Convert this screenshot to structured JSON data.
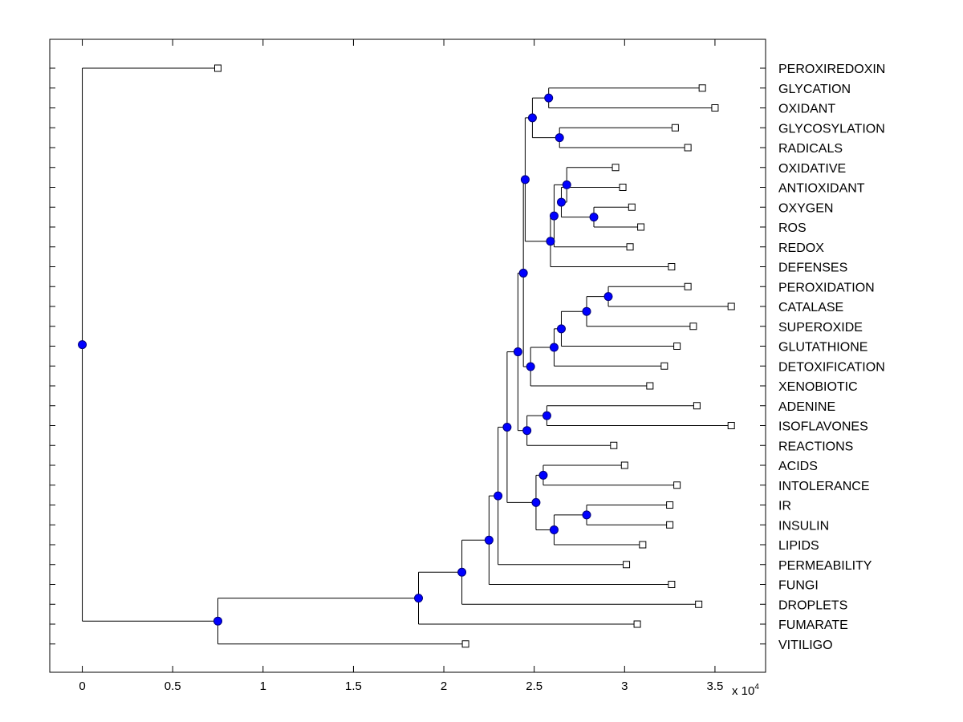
{
  "chart_data": {
    "type": "dendrogram",
    "title": "",
    "xlabel": "",
    "ylabel": "",
    "x_multiplier_label": "x 10",
    "x_multiplier_exponent": "4",
    "xlim": [
      -0.18,
      3.78
    ],
    "xticks": [
      0,
      0.5,
      1,
      1.5,
      2,
      2.5,
      3,
      3.5
    ],
    "grid": false,
    "leaves": [
      {
        "label": "PEROXIREDOXIN",
        "x": 0.75
      },
      {
        "label": "GLYCATION",
        "x": 3.43
      },
      {
        "label": "OXIDANT",
        "x": 3.5
      },
      {
        "label": "GLYCOSYLATION",
        "x": 3.28
      },
      {
        "label": "RADICALS",
        "x": 3.35
      },
      {
        "label": "OXIDATIVE",
        "x": 2.95
      },
      {
        "label": "ANTIOXIDANT",
        "x": 2.99
      },
      {
        "label": "OXYGEN",
        "x": 3.04
      },
      {
        "label": "ROS",
        "x": 3.09
      },
      {
        "label": "REDOX",
        "x": 3.03
      },
      {
        "label": "DEFENSES",
        "x": 3.26
      },
      {
        "label": "PEROXIDATION",
        "x": 3.35
      },
      {
        "label": "CATALASE",
        "x": 3.59
      },
      {
        "label": "SUPEROXIDE",
        "x": 3.38
      },
      {
        "label": "GLUTATHIONE",
        "x": 3.29
      },
      {
        "label": "DETOXIFICATION",
        "x": 3.22
      },
      {
        "label": "XENOBIOTIC",
        "x": 3.14
      },
      {
        "label": "ADENINE",
        "x": 3.4
      },
      {
        "label": "ISOFLAVONES",
        "x": 3.59
      },
      {
        "label": "REACTIONS",
        "x": 2.94
      },
      {
        "label": "ACIDS",
        "x": 3.0
      },
      {
        "label": "INTOLERANCE",
        "x": 3.29
      },
      {
        "label": "IR",
        "x": 3.25
      },
      {
        "label": "INSULIN",
        "x": 3.25
      },
      {
        "label": "LIPIDS",
        "x": 3.1
      },
      {
        "label": "PERMEABILITY",
        "x": 3.01
      },
      {
        "label": "FUNGI",
        "x": 3.26
      },
      {
        "label": "DROPLETS",
        "x": 3.41
      },
      {
        "label": "FUMARATE",
        "x": 3.07
      },
      {
        "label": "VITILIGO",
        "x": 2.12
      }
    ],
    "merges": [
      {
        "id": "n1",
        "x": 2.58,
        "children": [
          "L1",
          "L2"
        ]
      },
      {
        "id": "n2",
        "x": 2.64,
        "children": [
          "L3",
          "L4"
        ]
      },
      {
        "id": "n3",
        "x": 2.49,
        "children": [
          "n1",
          "n2"
        ]
      },
      {
        "id": "n4",
        "x": 2.83,
        "children": [
          "L7",
          "L8"
        ]
      },
      {
        "id": "n5",
        "x": 2.65,
        "children": [
          "L6",
          "n4"
        ]
      },
      {
        "id": "n6",
        "x": 2.68,
        "children": [
          "L5",
          "n5"
        ]
      },
      {
        "id": "n7",
        "x": 2.61,
        "children": [
          "n6",
          "L9"
        ]
      },
      {
        "id": "n8",
        "x": 2.59,
        "children": [
          "n7",
          "L10"
        ]
      },
      {
        "id": "n9",
        "x": 2.45,
        "children": [
          "n3",
          "n8"
        ]
      },
      {
        "id": "n10",
        "x": 2.91,
        "children": [
          "L11",
          "L12"
        ]
      },
      {
        "id": "n11",
        "x": 2.79,
        "children": [
          "n10",
          "L13"
        ]
      },
      {
        "id": "n12",
        "x": 2.65,
        "children": [
          "n11",
          "L14"
        ]
      },
      {
        "id": "n13",
        "x": 2.61,
        "children": [
          "n12",
          "L15"
        ]
      },
      {
        "id": "n14",
        "x": 2.48,
        "children": [
          "n13",
          "L16"
        ]
      },
      {
        "id": "n15",
        "x": 2.44,
        "children": [
          "n9",
          "n14"
        ]
      },
      {
        "id": "n16",
        "x": 2.57,
        "children": [
          "L17",
          "L18"
        ]
      },
      {
        "id": "n17",
        "x": 2.46,
        "children": [
          "n16",
          "L19"
        ]
      },
      {
        "id": "n18",
        "x": 2.41,
        "children": [
          "n15",
          "n17"
        ]
      },
      {
        "id": "n19",
        "x": 2.55,
        "children": [
          "L20",
          "L21"
        ]
      },
      {
        "id": "n20",
        "x": 2.79,
        "children": [
          "L22",
          "L23"
        ]
      },
      {
        "id": "n21",
        "x": 2.61,
        "children": [
          "n20",
          "L24"
        ]
      },
      {
        "id": "n22",
        "x": 2.51,
        "children": [
          "n19",
          "n21"
        ]
      },
      {
        "id": "n23",
        "x": 2.35,
        "children": [
          "n18",
          "n22"
        ]
      },
      {
        "id": "n24",
        "x": 2.3,
        "children": [
          "n23",
          "L25"
        ]
      },
      {
        "id": "n25",
        "x": 2.25,
        "children": [
          "n24",
          "L26"
        ]
      },
      {
        "id": "n26",
        "x": 2.1,
        "children": [
          "n25",
          "L27"
        ]
      },
      {
        "id": "n27",
        "x": 1.86,
        "children": [
          "n26",
          "L28"
        ]
      },
      {
        "id": "n28",
        "x": 0.75,
        "children": [
          "n27",
          "L29"
        ]
      },
      {
        "id": "n29",
        "x": 0.0,
        "children": [
          "L0",
          "n28"
        ]
      }
    ]
  },
  "colors": {
    "link": "#000000",
    "internal_node": "#0000ff",
    "leaf_marker": "#ffffff",
    "background": "#ffffff"
  }
}
